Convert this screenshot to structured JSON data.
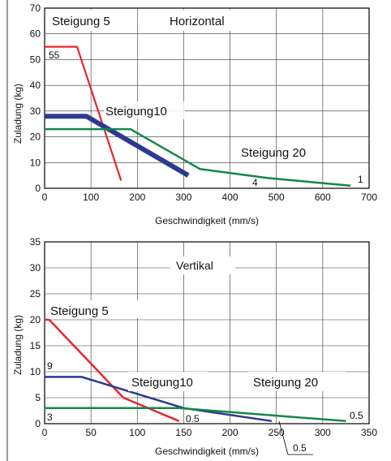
{
  "chart_data": [
    {
      "type": "line",
      "title": "Horizontal",
      "xlabel": "Geschwindigkeit (mm/s)",
      "ylabel": "Zuladung (kg)",
      "xlim": [
        0,
        700
      ],
      "ylim": [
        0,
        70
      ],
      "xticks": [
        "0",
        "100",
        "200",
        "300",
        "400",
        "500",
        "600",
        "700"
      ],
      "yticks": [
        "0",
        "10",
        "20",
        "30",
        "40",
        "50",
        "60",
        "70"
      ],
      "grid": true,
      "series": [
        {
          "name": "Steigung 5",
          "color": "#e8262b",
          "width": 2.2,
          "x": [
            0,
            70,
            165
          ],
          "y": [
            55,
            55,
            3
          ]
        },
        {
          "name": "Steigung10",
          "color": "#2b3a8f",
          "width": 6,
          "x": [
            0,
            90,
            310
          ],
          "y": [
            28,
            28,
            5
          ]
        },
        {
          "name": "Steigung 20",
          "color": "#138845",
          "width": 2.5,
          "x": [
            0,
            185,
            335,
            480,
            660
          ],
          "y": [
            23,
            23,
            7.5,
            4,
            1
          ]
        }
      ],
      "end_labels": [
        "55",
        "4",
        "1"
      ]
    },
    {
      "type": "line",
      "title": "Vertikal",
      "xlabel": "Geschwindigkeit (mm/s)",
      "ylabel": "Zuladung (kg)",
      "xlim": [
        0,
        350
      ],
      "ylim": [
        0,
        35
      ],
      "xticks": [
        "0",
        "50",
        "100",
        "150",
        "200",
        "250",
        "300",
        "350"
      ],
      "yticks": [
        "0",
        "5",
        "10",
        "15",
        "20",
        "25",
        "30",
        "35"
      ],
      "grid": true,
      "series": [
        {
          "name": "Steigung 5",
          "color": "#e8262b",
          "width": 2.5,
          "x": [
            0,
            5,
            85,
            145
          ],
          "y": [
            20,
            20,
            5,
            0.5
          ]
        },
        {
          "name": "Steigung10",
          "color": "#2b3a8f",
          "width": 2.5,
          "x": [
            0,
            40,
            150,
            245
          ],
          "y": [
            9,
            9,
            3,
            0.5
          ]
        },
        {
          "name": "Steigung 20",
          "color": "#138845",
          "width": 2.5,
          "x": [
            0,
            145,
            325
          ],
          "y": [
            3,
            3,
            0.5
          ]
        }
      ],
      "end_labels": [
        "20",
        "9",
        "3",
        "0.5",
        "0.5",
        "0.5"
      ]
    }
  ]
}
